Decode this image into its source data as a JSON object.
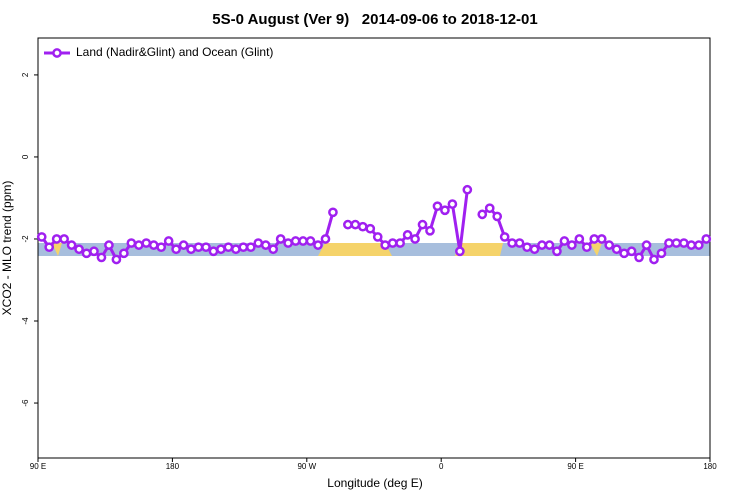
{
  "chart_data": {
    "type": "line",
    "title": "5S-0 August (Ver 9)   2014-09-06 to 2018-12-01",
    "x_label": "Longitude (deg E)",
    "y_label": "XCO2 - MLO trend (ppm)",
    "legend": "top-left",
    "x": [
      92.5,
      97.5,
      102.5,
      107.5,
      112.5,
      117.5,
      122.5,
      127.5,
      132.5,
      137.5,
      142.5,
      147.5,
      152.5,
      157.5,
      162.5,
      167.5,
      172.5,
      177.5,
      182.5,
      187.5,
      192.5,
      197.5,
      202.5,
      207.5,
      212.5,
      217.5,
      222.5,
      227.5,
      232.5,
      237.5,
      242.5,
      247.5,
      252.5,
      257.5,
      262.5,
      267.5,
      272.5,
      277.5,
      282.5,
      287.5,
      292.5,
      297.5,
      302.5,
      307.5,
      312.5,
      317.5,
      322.5,
      327.5,
      332.5,
      337.5,
      342.5,
      347.5,
      352.5,
      357.5,
      362.5,
      367.5,
      372.5,
      377.5,
      382.5,
      387.5,
      392.5,
      397.5,
      402.5,
      407.5,
      412.5,
      417.5,
      422.5,
      427.5,
      432.5,
      437.5,
      442.5,
      447.5,
      452.5,
      457.5,
      462.5,
      467.5,
      472.5,
      477.5,
      482.5,
      487.5,
      492.5,
      497.5,
      502.5,
      507.5,
      512.5,
      517.5,
      522.5,
      527.5,
      532.5,
      537.5
    ],
    "series": [
      {
        "name": "Land (Nadir&Glint) and Ocean (Glint)",
        "color": "#a020f0",
        "values": [
          -1.95,
          -2.2,
          -2.0,
          -2.0,
          -2.15,
          -2.25,
          -2.35,
          -2.3,
          -2.45,
          -2.15,
          -2.5,
          -2.35,
          -2.1,
          -2.15,
          -2.1,
          -2.15,
          -2.2,
          -2.05,
          -2.25,
          -2.15,
          -2.25,
          -2.2,
          -2.2,
          -2.3,
          -2.25,
          -2.2,
          -2.25,
          -2.2,
          -2.2,
          -2.1,
          -2.15,
          -2.25,
          -2.0,
          -2.1,
          -2.05,
          -2.05,
          -2.05,
          -2.15,
          -2.0,
          -1.35,
          null,
          -1.65,
          -1.65,
          -1.7,
          -1.75,
          -1.95,
          -2.15,
          -2.1,
          -2.1,
          -1.9,
          -2.0,
          -1.65,
          -1.8,
          -1.2,
          -1.3,
          -1.15,
          -2.3,
          -0.8,
          null,
          -1.4,
          -1.25,
          -1.45,
          -1.95,
          -2.1,
          -2.1,
          -2.2,
          -2.25,
          -2.15,
          -2.15,
          -2.3,
          -2.05,
          -2.15,
          -2.0,
          -2.2,
          -2.0,
          -2.0,
          -2.15,
          -2.25,
          -2.35,
          -2.3,
          -2.45,
          -2.15,
          -2.5,
          -2.35,
          -2.1,
          -2.1,
          -2.1,
          -2.15,
          -2.15,
          -2.0
        ]
      }
    ],
    "xlim": [
      90,
      540
    ],
    "xticks": [
      {
        "value": 90,
        "label": "90 E"
      },
      180,
      {
        "value": 270,
        "label": "90 W"
      },
      {
        "value": 360,
        "label": "0"
      },
      {
        "value": 450,
        "label": "90 E"
      },
      {
        "value": 540,
        "label": "180"
      }
    ],
    "ylim": [
      -7.34,
      2.9
    ],
    "yticks": [
      -6,
      -4,
      -2,
      0,
      2
    ]
  }
}
